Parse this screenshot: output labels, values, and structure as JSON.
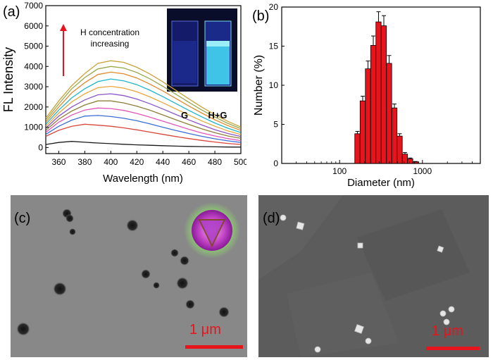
{
  "panels": {
    "a": "(a)",
    "b": "(b)",
    "c": "(c)",
    "d": "(d)"
  },
  "chart_data": [
    {
      "type": "line",
      "panel": "(a)",
      "xlabel": "Wavelength (nm)",
      "ylabel": "FL Intensity",
      "xlim": [
        350,
        500
      ],
      "ylim": [
        -300,
        7000
      ],
      "xticks": [
        360,
        380,
        400,
        420,
        440,
        460,
        480,
        500
      ],
      "yticks": [
        0,
        1000,
        2000,
        3000,
        4000,
        5000,
        6000,
        7000
      ],
      "annotation": "H concentration increasing",
      "x": [
        350,
        360,
        370,
        380,
        390,
        400,
        410,
        420,
        430,
        440,
        450,
        460,
        470,
        480,
        490,
        500
      ],
      "series": [
        {
          "color": "#1a1a1a",
          "values": [
            150,
            250,
            300,
            260,
            220,
            190,
            160,
            130,
            110,
            90,
            70,
            55,
            45,
            35,
            25,
            20
          ]
        },
        {
          "color": "#d9473a",
          "values": [
            550,
            850,
            1050,
            1150,
            1100,
            1050,
            970,
            870,
            760,
            650,
            540,
            440,
            350,
            270,
            200,
            150
          ]
        },
        {
          "color": "#3a6fd8",
          "values": [
            650,
            1050,
            1350,
            1550,
            1580,
            1530,
            1440,
            1320,
            1170,
            1000,
            840,
            690,
            550,
            430,
            330,
            250
          ]
        },
        {
          "color": "#e056b8",
          "values": [
            750,
            1250,
            1600,
            1850,
            1950,
            1920,
            1830,
            1680,
            1500,
            1300,
            1100,
            900,
            720,
            570,
            440,
            340
          ]
        },
        {
          "color": "#8d7e3a",
          "values": [
            850,
            1400,
            1800,
            2100,
            2300,
            2300,
            2200,
            2040,
            1840,
            1610,
            1370,
            1140,
            920,
            730,
            570,
            450
          ]
        },
        {
          "color": "#8a55c8",
          "values": [
            950,
            1550,
            2000,
            2350,
            2600,
            2650,
            2560,
            2390,
            2160,
            1900,
            1630,
            1360,
            1110,
            880,
            690,
            540
          ]
        },
        {
          "color": "#e8a63a",
          "values": [
            1050,
            1700,
            2250,
            2650,
            2950,
            3020,
            2930,
            2750,
            2500,
            2210,
            1900,
            1600,
            1310,
            1050,
            820,
            640
          ]
        },
        {
          "color": "#1fb5c8",
          "values": [
            1150,
            1850,
            2450,
            2900,
            3250,
            3380,
            3290,
            3100,
            2830,
            2510,
            2170,
            1830,
            1510,
            1210,
            950,
            740
          ]
        },
        {
          "color": "#e08a2c",
          "values": [
            1250,
            2000,
            2700,
            3200,
            3600,
            3720,
            3640,
            3430,
            3130,
            2790,
            2420,
            2050,
            1700,
            1370,
            1080,
            840
          ]
        },
        {
          "color": "#9aa84a",
          "values": [
            1350,
            2150,
            2900,
            3450,
            3880,
            4000,
            3920,
            3700,
            3390,
            3020,
            2630,
            2230,
            1850,
            1500,
            1190,
            930
          ]
        },
        {
          "color": "#c9a23a",
          "values": [
            1450,
            2300,
            3050,
            3650,
            4150,
            4280,
            4200,
            3960,
            3630,
            3240,
            2820,
            2400,
            1990,
            1620,
            1290,
            1010
          ]
        }
      ],
      "inset": {
        "labels": [
          "G",
          "H+G"
        ]
      }
    },
    {
      "type": "bar",
      "panel": "(b)",
      "xlabel": "Diameter (nm)",
      "ylabel": "Number (%)",
      "xscale": "log",
      "xlim": [
        20,
        5000
      ],
      "ylim": [
        0,
        20
      ],
      "xticks": [
        100,
        1000
      ],
      "yticks": [
        0,
        5,
        10,
        15,
        20
      ],
      "x": [
        164,
        190,
        220,
        255,
        295,
        342,
        396,
        459,
        531,
        615,
        712,
        825
      ],
      "values": [
        3.8,
        8.0,
        12.1,
        15.1,
        18.1,
        17.6,
        12.8,
        7.1,
        3.5,
        1.2,
        0.6,
        0.2
      ],
      "errors": [
        0.3,
        0.6,
        1.0,
        1.2,
        1.3,
        1.3,
        1.0,
        0.5,
        0.3,
        0.2,
        0.1,
        0.05
      ]
    }
  ],
  "micrographs": {
    "c": {
      "scale_label": "1 μm"
    },
    "d": {
      "scale_label": "1 μm"
    }
  },
  "colors": {
    "bar_fill": "#e8141b",
    "scale_bar": "#e8141b",
    "arrow": "#e8141b"
  }
}
